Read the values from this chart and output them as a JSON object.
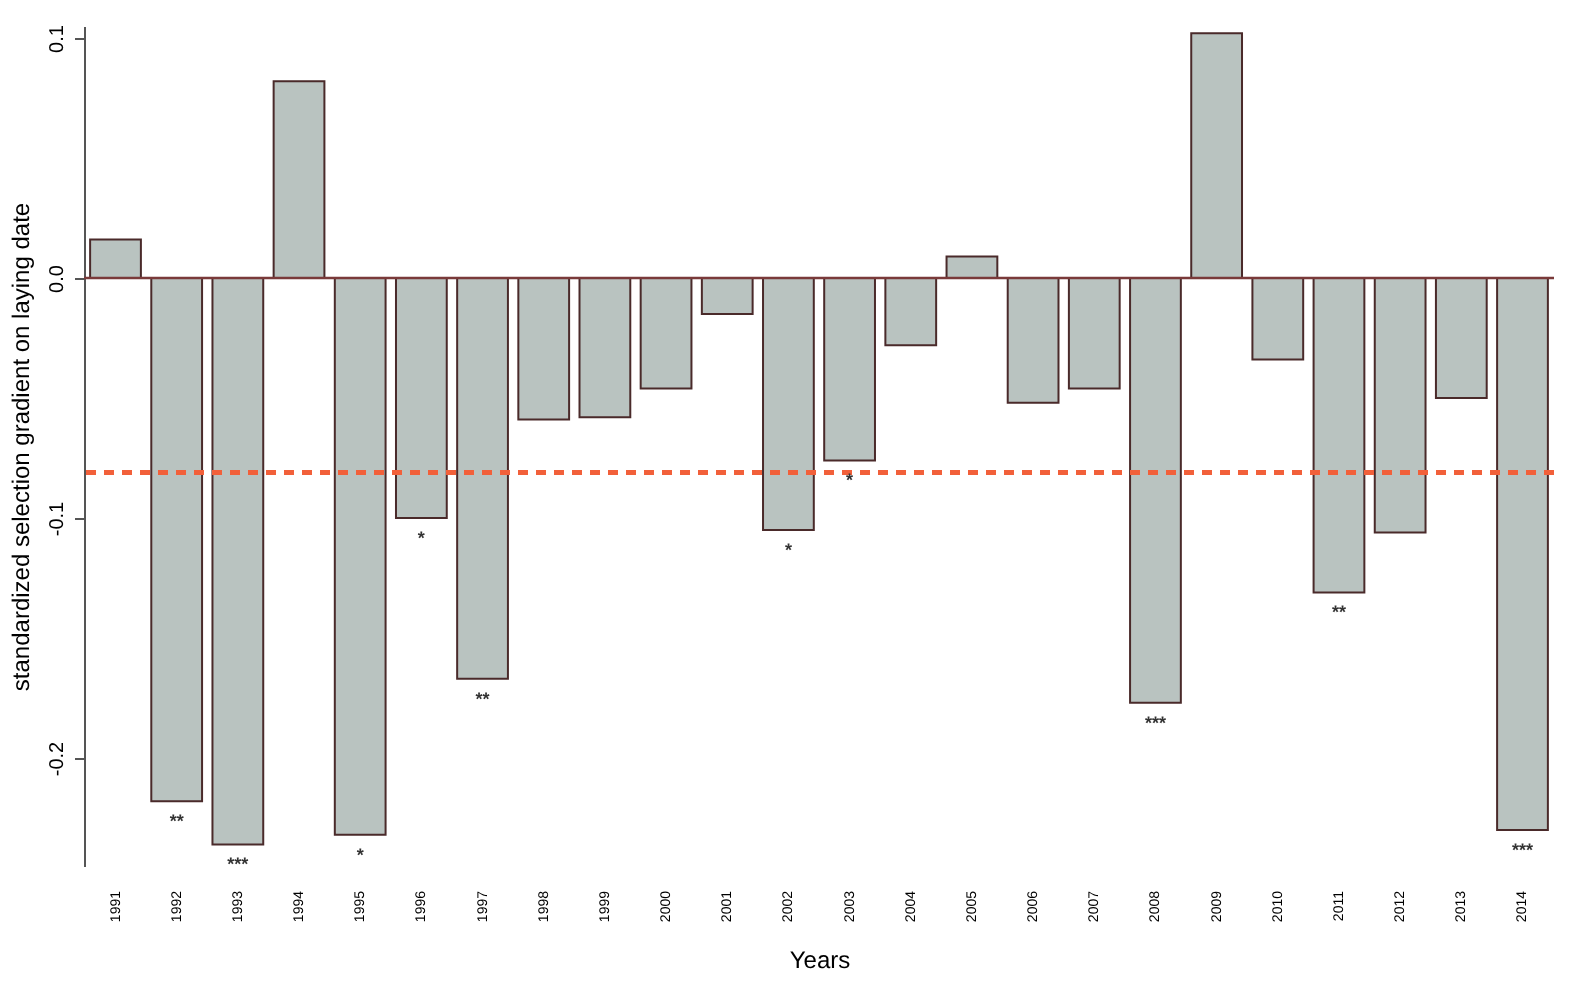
{
  "chart_data": {
    "type": "bar",
    "xlabel": "Years",
    "ylabel": "standardized selection gradient on laying date",
    "categories": [
      "1991",
      "1992",
      "1993",
      "1994",
      "1995",
      "1996",
      "1997",
      "1998",
      "1999",
      "2000",
      "2001",
      "2002",
      "2003",
      "2004",
      "2005",
      "2006",
      "2007",
      "2008",
      "2009",
      "2010",
      "2011",
      "2012",
      "2013",
      "2014"
    ],
    "values": [
      0.016,
      -0.218,
      -0.236,
      0.082,
      -0.232,
      -0.1,
      -0.167,
      -0.059,
      -0.058,
      -0.046,
      -0.015,
      -0.105,
      -0.076,
      -0.028,
      0.009,
      -0.052,
      -0.046,
      -0.177,
      0.102,
      -0.034,
      -0.131,
      -0.106,
      -0.05,
      -0.23
    ],
    "color": "#b9c3c0",
    "ylim": [
      -0.245,
      0.105
    ],
    "yticks": [
      -0.2,
      -0.1,
      {
        "value": 0,
        "label": "0.0"
      },
      0.1
    ],
    "grid": false,
    "ref_lines": [
      {
        "axis": "y",
        "value": 0,
        "color": "#7a3a3a"
      },
      {
        "axis": "y",
        "value": -0.081,
        "color": "#f2603a",
        "line_style": "dashed"
      }
    ],
    "annotations": [
      {
        "text": "**",
        "x": "1992",
        "y": -0.218
      },
      {
        "text": "***",
        "x": "1993",
        "y": -0.236
      },
      {
        "text": "*",
        "x": "1995",
        "y": -0.232
      },
      {
        "text": "*",
        "x": "1996",
        "y": -0.1
      },
      {
        "text": "**",
        "x": "1997",
        "y": -0.167
      },
      {
        "text": "*",
        "x": "2002",
        "y": -0.105
      },
      {
        "text": "*",
        "x": "2003",
        "y": -0.076
      },
      {
        "text": "***",
        "x": "2008",
        "y": -0.177
      },
      {
        "text": "**",
        "x": "2011",
        "y": -0.131
      },
      {
        "text": "***",
        "x": "2014",
        "y": -0.23
      }
    ]
  }
}
